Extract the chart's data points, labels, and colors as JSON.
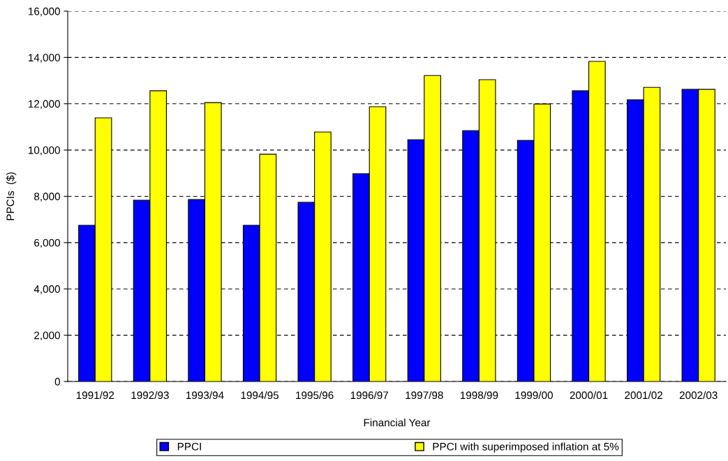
{
  "chart_data": {
    "type": "bar",
    "xlabel": "Financial Year",
    "ylabel": "PPCIs  ($)",
    "categories": [
      "1991/92",
      "1992/93",
      "1993/94",
      "1994/95",
      "1995/96",
      "1996/97",
      "1997/98",
      "1998/99",
      "1999/00",
      "2000/01",
      "2001/02",
      "2002/03"
    ],
    "series": [
      {
        "name": "PPCI",
        "color": "#0000ff",
        "values": [
          6750,
          7830,
          7860,
          6750,
          7740,
          8980,
          10450,
          10840,
          10420,
          12560,
          12170,
          12620
        ]
      },
      {
        "name": "PPCI with superimposed inflation at 5%",
        "color": "#ffff00",
        "values": [
          11390,
          12560,
          12050,
          9820,
          10780,
          11870,
          13220,
          13040,
          11990,
          13830,
          12710,
          12620
        ]
      }
    ],
    "ylim": [
      0,
      16000
    ],
    "yticks": [
      {
        "value": 0,
        "label": "0"
      },
      {
        "value": 2000,
        "label": "2,000"
      },
      {
        "value": 4000,
        "label": "4,000"
      },
      {
        "value": 6000,
        "label": "6,000"
      },
      {
        "value": 8000,
        "label": "8,000"
      },
      {
        "value": 10000,
        "label": "10,000"
      },
      {
        "value": 12000,
        "label": "12,000"
      },
      {
        "value": 14000,
        "label": "14,000"
      },
      {
        "value": 16000,
        "label": "16,000"
      }
    ],
    "grid": "y",
    "legend": "bottom"
  }
}
